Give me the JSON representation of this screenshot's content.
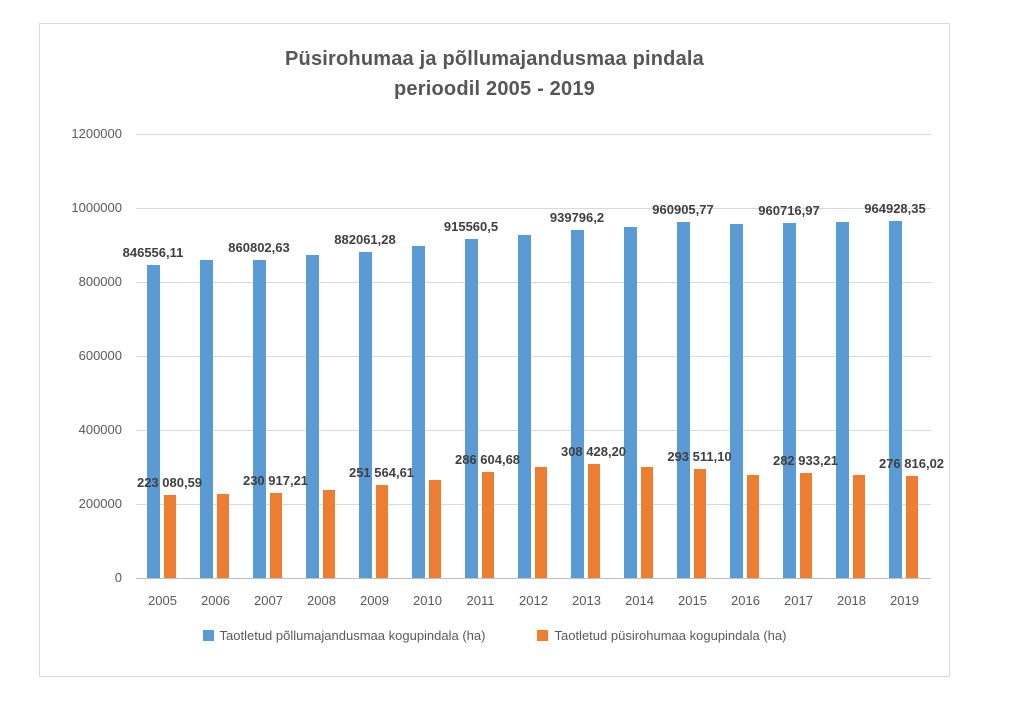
{
  "window": {
    "background": "#ffffff",
    "border_color": "#d9d9d9"
  },
  "chart_data": {
    "type": "bar",
    "title": "Püsirohumaa ja põllumajandusmaa pindala perioodil 2005 - 2019",
    "title_line1": "Püsirohumaa ja põllumajandusmaa pindala",
    "title_line2": "perioodil 2005 - 2019",
    "categories": [
      "2005",
      "2006",
      "2007",
      "2008",
      "2009",
      "2010",
      "2011",
      "2012",
      "2013",
      "2014",
      "2015",
      "2016",
      "2017",
      "2018",
      "2019"
    ],
    "series": [
      {
        "name": "Taotletud põllumajandusmaa kogupindala (ha)",
        "color": "#5B9BD5",
        "values": [
          846556.11,
          859000,
          860802.63,
          874000,
          882061.28,
          898000,
          915560.5,
          928000,
          939796.2,
          950000,
          960905.77,
          958000,
          960716.97,
          961000,
          964928.35
        ],
        "labels": [
          "846556,11",
          null,
          "860802,63",
          null,
          "882061,28",
          null,
          "915560,5",
          null,
          "939796,2",
          null,
          "960905,77",
          null,
          "960716,97",
          null,
          "964928,35"
        ]
      },
      {
        "name": "Taotletud püsirohumaa kogupindala (ha)",
        "color": "#ED7D31",
        "values": [
          223080.59,
          228000,
          230917.21,
          238000,
          251564.61,
          264000,
          286604.68,
          301000,
          308428.2,
          301000,
          293511.1,
          278000,
          282933.21,
          278000,
          276816.02
        ],
        "labels": [
          "223 080,59",
          null,
          "230 917,21",
          null,
          "251 564,61",
          null,
          "286 604,68",
          null,
          "308 428,20",
          null,
          "293 511,10",
          null,
          "282 933,21",
          null,
          "276 816,02"
        ]
      }
    ],
    "xlabel": "",
    "ylabel": "",
    "ylim": [
      0,
      1200000
    ],
    "yticks": [
      0,
      200000,
      400000,
      600000,
      800000,
      1000000,
      1200000
    ],
    "ytick_labels": [
      "0",
      "200000",
      "400000",
      "600000",
      "800000",
      "1000000",
      "1200000"
    ],
    "grid": true,
    "legend_position": "bottom",
    "text_color": "#595959",
    "label_color": "#3f3f3f",
    "gridline_color": "#d9d9d9"
  }
}
